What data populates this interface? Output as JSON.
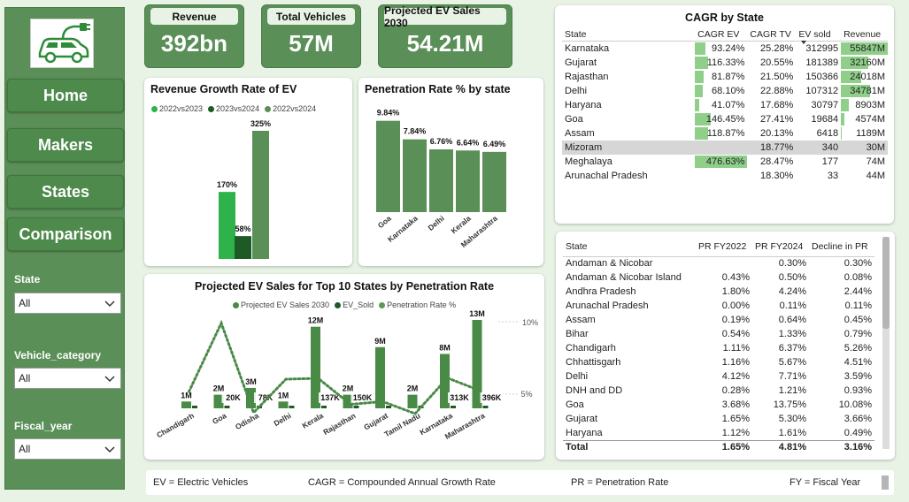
{
  "nav": {
    "home": "Home",
    "makers": "Makers",
    "states": "States",
    "comparison": "Comparison"
  },
  "filters": [
    {
      "label": "State",
      "value": "All"
    },
    {
      "label": "Vehicle_category",
      "value": "All"
    },
    {
      "label": "Fiscal_year",
      "value": "All"
    }
  ],
  "kpis": [
    {
      "title": "Revenue",
      "value": "392bn"
    },
    {
      "title": "Total Vehicles",
      "value": "57M"
    },
    {
      "title": "Projected EV Sales 2030",
      "value": "54.21M"
    }
  ],
  "colors": {
    "dark": "#1d5a26",
    "bright": "#2db34a",
    "mid": "#5a8f57",
    "panel": "#5a8f57"
  },
  "revenue_chart": {
    "title": "Revenue Growth Rate of EV",
    "legend": [
      "2022vs2023",
      "2023vs2024",
      "2022vs2024"
    ],
    "chart_data": {
      "type": "bar",
      "series": [
        {
          "name": "2022vs2023",
          "values": [
            170
          ],
          "label": "170%"
        },
        {
          "name": "2023vs2024",
          "values": [
            58
          ],
          "label": "58%"
        },
        {
          "name": "2022vs2024",
          "values": [
            325
          ],
          "label": "325%"
        }
      ]
    }
  },
  "penetration_chart": {
    "title": "Penetration Rate % by state",
    "chart_data": {
      "type": "bar",
      "categories": [
        "Goa",
        "Karnataka",
        "Delhi",
        "Kerala",
        "Maharashtra"
      ],
      "values": [
        9.84,
        7.84,
        6.76,
        6.64,
        6.49
      ],
      "labels": [
        "9.84%",
        "7.84%",
        "6.76%",
        "6.64%",
        "6.49%"
      ]
    }
  },
  "projected_chart": {
    "title": "Projected EV Sales for Top 10 States by Penetration Rate",
    "legend": [
      "Projected EV Sales 2030",
      "EV_Sold",
      "Penetration Rate %"
    ],
    "y2_ticks": [
      "10%",
      "5%"
    ],
    "chart_data": {
      "type": "bar",
      "categories": [
        "Chandigarh",
        "Goa",
        "Odisha",
        "Delhi",
        "Kerala",
        "Rajasthan",
        "Gujarat",
        "Tamil Nadu",
        "Karnataka",
        "Maharashtra"
      ],
      "projected": [
        1,
        2,
        3,
        1,
        12,
        2,
        9,
        2,
        8,
        13
      ],
      "projected_labels": [
        "1M",
        "2M",
        "3M",
        "1M",
        "12M",
        "2M",
        "9M",
        "2M",
        "8M",
        "13M"
      ],
      "ev_sold_labels": [
        "",
        "20K",
        "78K",
        "",
        "137K",
        "150K",
        "",
        "",
        "313K",
        "396K"
      ],
      "penetration": [
        6.37,
        13.75,
        4.1,
        7.71,
        7.8,
        5.0,
        5.3,
        4.0,
        7.84,
        6.49
      ]
    }
  },
  "cagr_table": {
    "title": "CAGR by State",
    "headers": [
      "State",
      "CAGR EV",
      "CAGR TV",
      "EV sold",
      "Revenue"
    ],
    "rows": [
      {
        "state": "Karnataka",
        "cagr_ev": "93.24%",
        "cagr_tv": "25.28%",
        "ev_sold": "312995",
        "revenue": "55847M",
        "ev_pct": 93.24,
        "rev_pct": 100
      },
      {
        "state": "Gujarat",
        "cagr_ev": "116.33%",
        "cagr_tv": "20.55%",
        "ev_sold": "181389",
        "revenue": "32160M",
        "ev_pct": 116.33,
        "rev_pct": 57.6
      },
      {
        "state": "Rajasthan",
        "cagr_ev": "81.87%",
        "cagr_tv": "21.50%",
        "ev_sold": "150366",
        "revenue": "24018M",
        "ev_pct": 81.87,
        "rev_pct": 43
      },
      {
        "state": "Delhi",
        "cagr_ev": "68.10%",
        "cagr_tv": "22.88%",
        "ev_sold": "107312",
        "revenue": "34781M",
        "ev_pct": 68.1,
        "rev_pct": 62.3
      },
      {
        "state": "Haryana",
        "cagr_ev": "41.07%",
        "cagr_tv": "17.68%",
        "ev_sold": "30797",
        "revenue": "8903M",
        "ev_pct": 41.07,
        "rev_pct": 15.9
      },
      {
        "state": "Goa",
        "cagr_ev": "146.45%",
        "cagr_tv": "27.41%",
        "ev_sold": "19684",
        "revenue": "4574M",
        "ev_pct": 146.45,
        "rev_pct": 8.2
      },
      {
        "state": "Assam",
        "cagr_ev": "118.87%",
        "cagr_tv": "20.13%",
        "ev_sold": "6418",
        "revenue": "1189M",
        "ev_pct": 118.87,
        "rev_pct": 2.1
      },
      {
        "state": "Mizoram",
        "cagr_ev": "",
        "cagr_tv": "18.77%",
        "ev_sold": "340",
        "revenue": "30M",
        "ev_pct": 0,
        "rev_pct": 0.05
      },
      {
        "state": "Meghalaya",
        "cagr_ev": "476.63%",
        "cagr_tv": "28.47%",
        "ev_sold": "177",
        "revenue": "74M",
        "ev_pct": 476.63,
        "rev_pct": 0.1
      },
      {
        "state": "Arunachal Pradesh",
        "cagr_ev": "",
        "cagr_tv": "18.30%",
        "ev_sold": "33",
        "revenue": "44M",
        "ev_pct": 0,
        "rev_pct": 0.08
      }
    ]
  },
  "pr_table": {
    "headers": [
      "State",
      "PR FY2022",
      "PR FY2024",
      "Decline in PR"
    ],
    "rows": [
      [
        "Andaman & Nicobar",
        "",
        "0.30%",
        "0.30%"
      ],
      [
        "Andaman & Nicobar Island",
        "0.43%",
        "0.50%",
        "0.08%"
      ],
      [
        "Andhra Pradesh",
        "1.80%",
        "4.24%",
        "2.44%"
      ],
      [
        "Arunachal Pradesh",
        "0.00%",
        "0.11%",
        "0.11%"
      ],
      [
        "Assam",
        "0.19%",
        "0.64%",
        "0.45%"
      ],
      [
        "Bihar",
        "0.54%",
        "1.33%",
        "0.79%"
      ],
      [
        "Chandigarh",
        "1.11%",
        "6.37%",
        "5.26%"
      ],
      [
        "Chhattisgarh",
        "1.16%",
        "5.67%",
        "4.51%"
      ],
      [
        "Delhi",
        "4.12%",
        "7.71%",
        "3.59%"
      ],
      [
        "DNH and DD",
        "0.28%",
        "1.21%",
        "0.93%"
      ],
      [
        "Goa",
        "3.68%",
        "13.75%",
        "10.08%"
      ],
      [
        "Gujarat",
        "1.65%",
        "5.30%",
        "3.66%"
      ],
      [
        "Haryana",
        "1.12%",
        "1.61%",
        "0.49%"
      ]
    ],
    "total": [
      "Total",
      "1.65%",
      "4.81%",
      "3.16%"
    ]
  },
  "footer": {
    "ev": "EV = Electric Vehicles",
    "cagr": "CAGR = Compounded Annual Growth Rate",
    "pr": "PR = Penetration Rate",
    "fy": "FY = Fiscal Year"
  }
}
